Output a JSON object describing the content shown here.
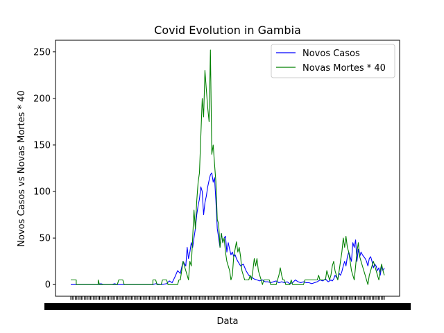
{
  "chart_data": {
    "type": "line",
    "title": "Covid Evolution in Gambia",
    "xlabel": "Data",
    "ylabel": "Novos Casos vs Novas Mortes * 40",
    "ylim": [
      -12.5,
      262.5
    ],
    "yticks": [
      0,
      50,
      100,
      150,
      200,
      250
    ],
    "x_count": 208,
    "grid": false,
    "legend_position": "top-right",
    "series": [
      {
        "name": "Novos Casos",
        "color": "#0000ff",
        "points": [
          [
            0,
            0
          ],
          [
            10,
            0
          ],
          [
            20,
            0
          ],
          [
            22,
            1
          ],
          [
            24,
            0
          ],
          [
            30,
            0
          ],
          [
            32,
            1
          ],
          [
            34,
            0
          ],
          [
            40,
            0
          ],
          [
            50,
            0
          ],
          [
            60,
            0
          ],
          [
            62,
            1
          ],
          [
            66,
            0
          ],
          [
            70,
            1
          ],
          [
            72,
            4
          ],
          [
            74,
            2
          ],
          [
            76,
            8
          ],
          [
            78,
            15
          ],
          [
            80,
            12
          ],
          [
            82,
            25
          ],
          [
            84,
            20
          ],
          [
            85,
            40
          ],
          [
            86,
            28
          ],
          [
            87,
            35
          ],
          [
            88,
            45
          ],
          [
            89,
            40
          ],
          [
            90,
            50
          ],
          [
            91,
            60
          ],
          [
            92,
            75
          ],
          [
            93,
            85
          ],
          [
            94,
            92
          ],
          [
            95,
            105
          ],
          [
            96,
            100
          ],
          [
            97,
            75
          ],
          [
            98,
            88
          ],
          [
            99,
            95
          ],
          [
            100,
            105
          ],
          [
            101,
            112
          ],
          [
            102,
            118
          ],
          [
            103,
            120
          ],
          [
            104,
            110
          ],
          [
            105,
            115
          ],
          [
            106,
            90
          ],
          [
            107,
            60
          ],
          [
            108,
            50
          ],
          [
            109,
            40
          ],
          [
            110,
            55
          ],
          [
            111,
            45
          ],
          [
            112,
            50
          ],
          [
            113,
            52
          ],
          [
            114,
            35
          ],
          [
            115,
            45
          ],
          [
            116,
            38
          ],
          [
            117,
            32
          ],
          [
            118,
            35
          ],
          [
            119,
            30
          ],
          [
            120,
            32
          ],
          [
            121,
            28
          ],
          [
            122,
            25
          ],
          [
            124,
            20
          ],
          [
            126,
            22
          ],
          [
            128,
            15
          ],
          [
            130,
            10
          ],
          [
            132,
            8
          ],
          [
            134,
            6
          ],
          [
            136,
            5
          ],
          [
            138,
            4
          ],
          [
            140,
            5
          ],
          [
            142,
            3
          ],
          [
            144,
            3
          ],
          [
            146,
            2
          ],
          [
            148,
            3
          ],
          [
            150,
            4
          ],
          [
            152,
            2
          ],
          [
            154,
            3
          ],
          [
            156,
            2
          ],
          [
            158,
            3
          ],
          [
            160,
            1
          ],
          [
            162,
            2
          ],
          [
            164,
            5
          ],
          [
            166,
            3
          ],
          [
            168,
            2
          ],
          [
            170,
            3
          ],
          [
            172,
            2
          ],
          [
            174,
            2
          ],
          [
            176,
            1
          ],
          [
            178,
            2
          ],
          [
            180,
            3
          ],
          [
            182,
            5
          ],
          [
            184,
            4
          ],
          [
            186,
            6
          ],
          [
            188,
            3
          ],
          [
            190,
            5
          ],
          [
            191,
            4
          ],
          [
            192,
            6
          ],
          [
            193,
            10
          ],
          [
            194,
            8
          ],
          [
            195,
            6
          ],
          [
            196,
            12
          ],
          [
            197,
            10
          ],
          [
            198,
            14
          ],
          [
            199,
            20
          ],
          [
            200,
            25
          ],
          [
            201,
            20
          ],
          [
            202,
            30
          ],
          [
            203,
            35
          ],
          [
            204,
            30
          ],
          [
            205,
            25
          ],
          [
            206,
            45
          ],
          [
            207,
            40
          ],
          [
            208,
            48
          ],
          [
            209,
            25
          ],
          [
            210,
            38
          ],
          [
            211,
            30
          ],
          [
            212,
            35
          ],
          [
            213,
            32
          ],
          [
            214,
            30
          ],
          [
            215,
            28
          ],
          [
            216,
            25
          ],
          [
            217,
            20
          ],
          [
            218,
            28
          ],
          [
            219,
            30
          ],
          [
            220,
            25
          ],
          [
            221,
            18
          ],
          [
            222,
            22
          ],
          [
            223,
            20
          ],
          [
            224,
            15
          ],
          [
            225,
            18
          ],
          [
            226,
            10
          ],
          [
            227,
            20
          ],
          [
            228,
            15
          ],
          [
            229,
            18
          ]
        ]
      },
      {
        "name": "Novas Mortes * 40",
        "color": "#008000",
        "points": [
          [
            0,
            5
          ],
          [
            4,
            5
          ],
          [
            4,
            0
          ],
          [
            20,
            0
          ],
          [
            20,
            5
          ],
          [
            21,
            0
          ],
          [
            34,
            0
          ],
          [
            35,
            5
          ],
          [
            38,
            5
          ],
          [
            39,
            0
          ],
          [
            60,
            0
          ],
          [
            60,
            5
          ],
          [
            62,
            5
          ],
          [
            63,
            0
          ],
          [
            66,
            0
          ],
          [
            67,
            5
          ],
          [
            70,
            5
          ],
          [
            71,
            0
          ],
          [
            78,
            0
          ],
          [
            79,
            5
          ],
          [
            80,
            5
          ],
          [
            81,
            15
          ],
          [
            82,
            25
          ],
          [
            83,
            20
          ],
          [
            84,
            15
          ],
          [
            85,
            10
          ],
          [
            86,
            5
          ],
          [
            87,
            25
          ],
          [
            88,
            20
          ],
          [
            89,
            50
          ],
          [
            90,
            80
          ],
          [
            91,
            60
          ],
          [
            92,
            90
          ],
          [
            93,
            110
          ],
          [
            94,
            120
          ],
          [
            95,
            160
          ],
          [
            96,
            200
          ],
          [
            97,
            180
          ],
          [
            98,
            230
          ],
          [
            99,
            210
          ],
          [
            100,
            190
          ],
          [
            101,
            175
          ],
          [
            102,
            252
          ],
          [
            103,
            140
          ],
          [
            104,
            150
          ],
          [
            105,
            130
          ],
          [
            106,
            110
          ],
          [
            107,
            70
          ],
          [
            108,
            65
          ],
          [
            109,
            40
          ],
          [
            110,
            55
          ],
          [
            111,
            45
          ],
          [
            112,
            50
          ],
          [
            113,
            35
          ],
          [
            114,
            25
          ],
          [
            115,
            20
          ],
          [
            116,
            15
          ],
          [
            117,
            5
          ],
          [
            118,
            10
          ],
          [
            119,
            30
          ],
          [
            120,
            38
          ],
          [
            121,
            46
          ],
          [
            122,
            35
          ],
          [
            123,
            40
          ],
          [
            124,
            30
          ],
          [
            125,
            15
          ],
          [
            126,
            10
          ],
          [
            127,
            5
          ],
          [
            130,
            5
          ],
          [
            131,
            10
          ],
          [
            132,
            5
          ],
          [
            133,
            15
          ],
          [
            134,
            28
          ],
          [
            135,
            20
          ],
          [
            136,
            28
          ],
          [
            137,
            15
          ],
          [
            138,
            10
          ],
          [
            139,
            5
          ],
          [
            140,
            0
          ],
          [
            141,
            5
          ],
          [
            145,
            5
          ],
          [
            146,
            0
          ],
          [
            150,
            0
          ],
          [
            151,
            5
          ],
          [
            152,
            10
          ],
          [
            153,
            18
          ],
          [
            154,
            10
          ],
          [
            155,
            5
          ],
          [
            156,
            5
          ],
          [
            157,
            0
          ],
          [
            160,
            0
          ],
          [
            161,
            5
          ],
          [
            162,
            0
          ],
          [
            170,
            0
          ],
          [
            171,
            5
          ],
          [
            180,
            5
          ],
          [
            181,
            10
          ],
          [
            182,
            5
          ],
          [
            186,
            5
          ],
          [
            187,
            15
          ],
          [
            188,
            10
          ],
          [
            189,
            5
          ],
          [
            190,
            10
          ],
          [
            191,
            20
          ],
          [
            192,
            25
          ],
          [
            193,
            15
          ],
          [
            194,
            10
          ],
          [
            195,
            5
          ],
          [
            196,
            15
          ],
          [
            197,
            25
          ],
          [
            198,
            35
          ],
          [
            199,
            50
          ],
          [
            200,
            40
          ],
          [
            201,
            52
          ],
          [
            202,
            40
          ],
          [
            203,
            35
          ],
          [
            204,
            25
          ],
          [
            205,
            15
          ],
          [
            206,
            10
          ],
          [
            207,
            5
          ],
          [
            208,
            20
          ],
          [
            209,
            35
          ],
          [
            210,
            45
          ],
          [
            211,
            30
          ],
          [
            212,
            25
          ],
          [
            213,
            20
          ],
          [
            214,
            15
          ],
          [
            215,
            10
          ],
          [
            216,
            5
          ],
          [
            217,
            0
          ],
          [
            218,
            10
          ],
          [
            219,
            15
          ],
          [
            220,
            20
          ],
          [
            221,
            25
          ],
          [
            222,
            20
          ],
          [
            223,
            15
          ],
          [
            224,
            10
          ],
          [
            225,
            5
          ],
          [
            226,
            15
          ],
          [
            227,
            22
          ],
          [
            228,
            15
          ],
          [
            229,
            10
          ]
        ]
      }
    ]
  }
}
